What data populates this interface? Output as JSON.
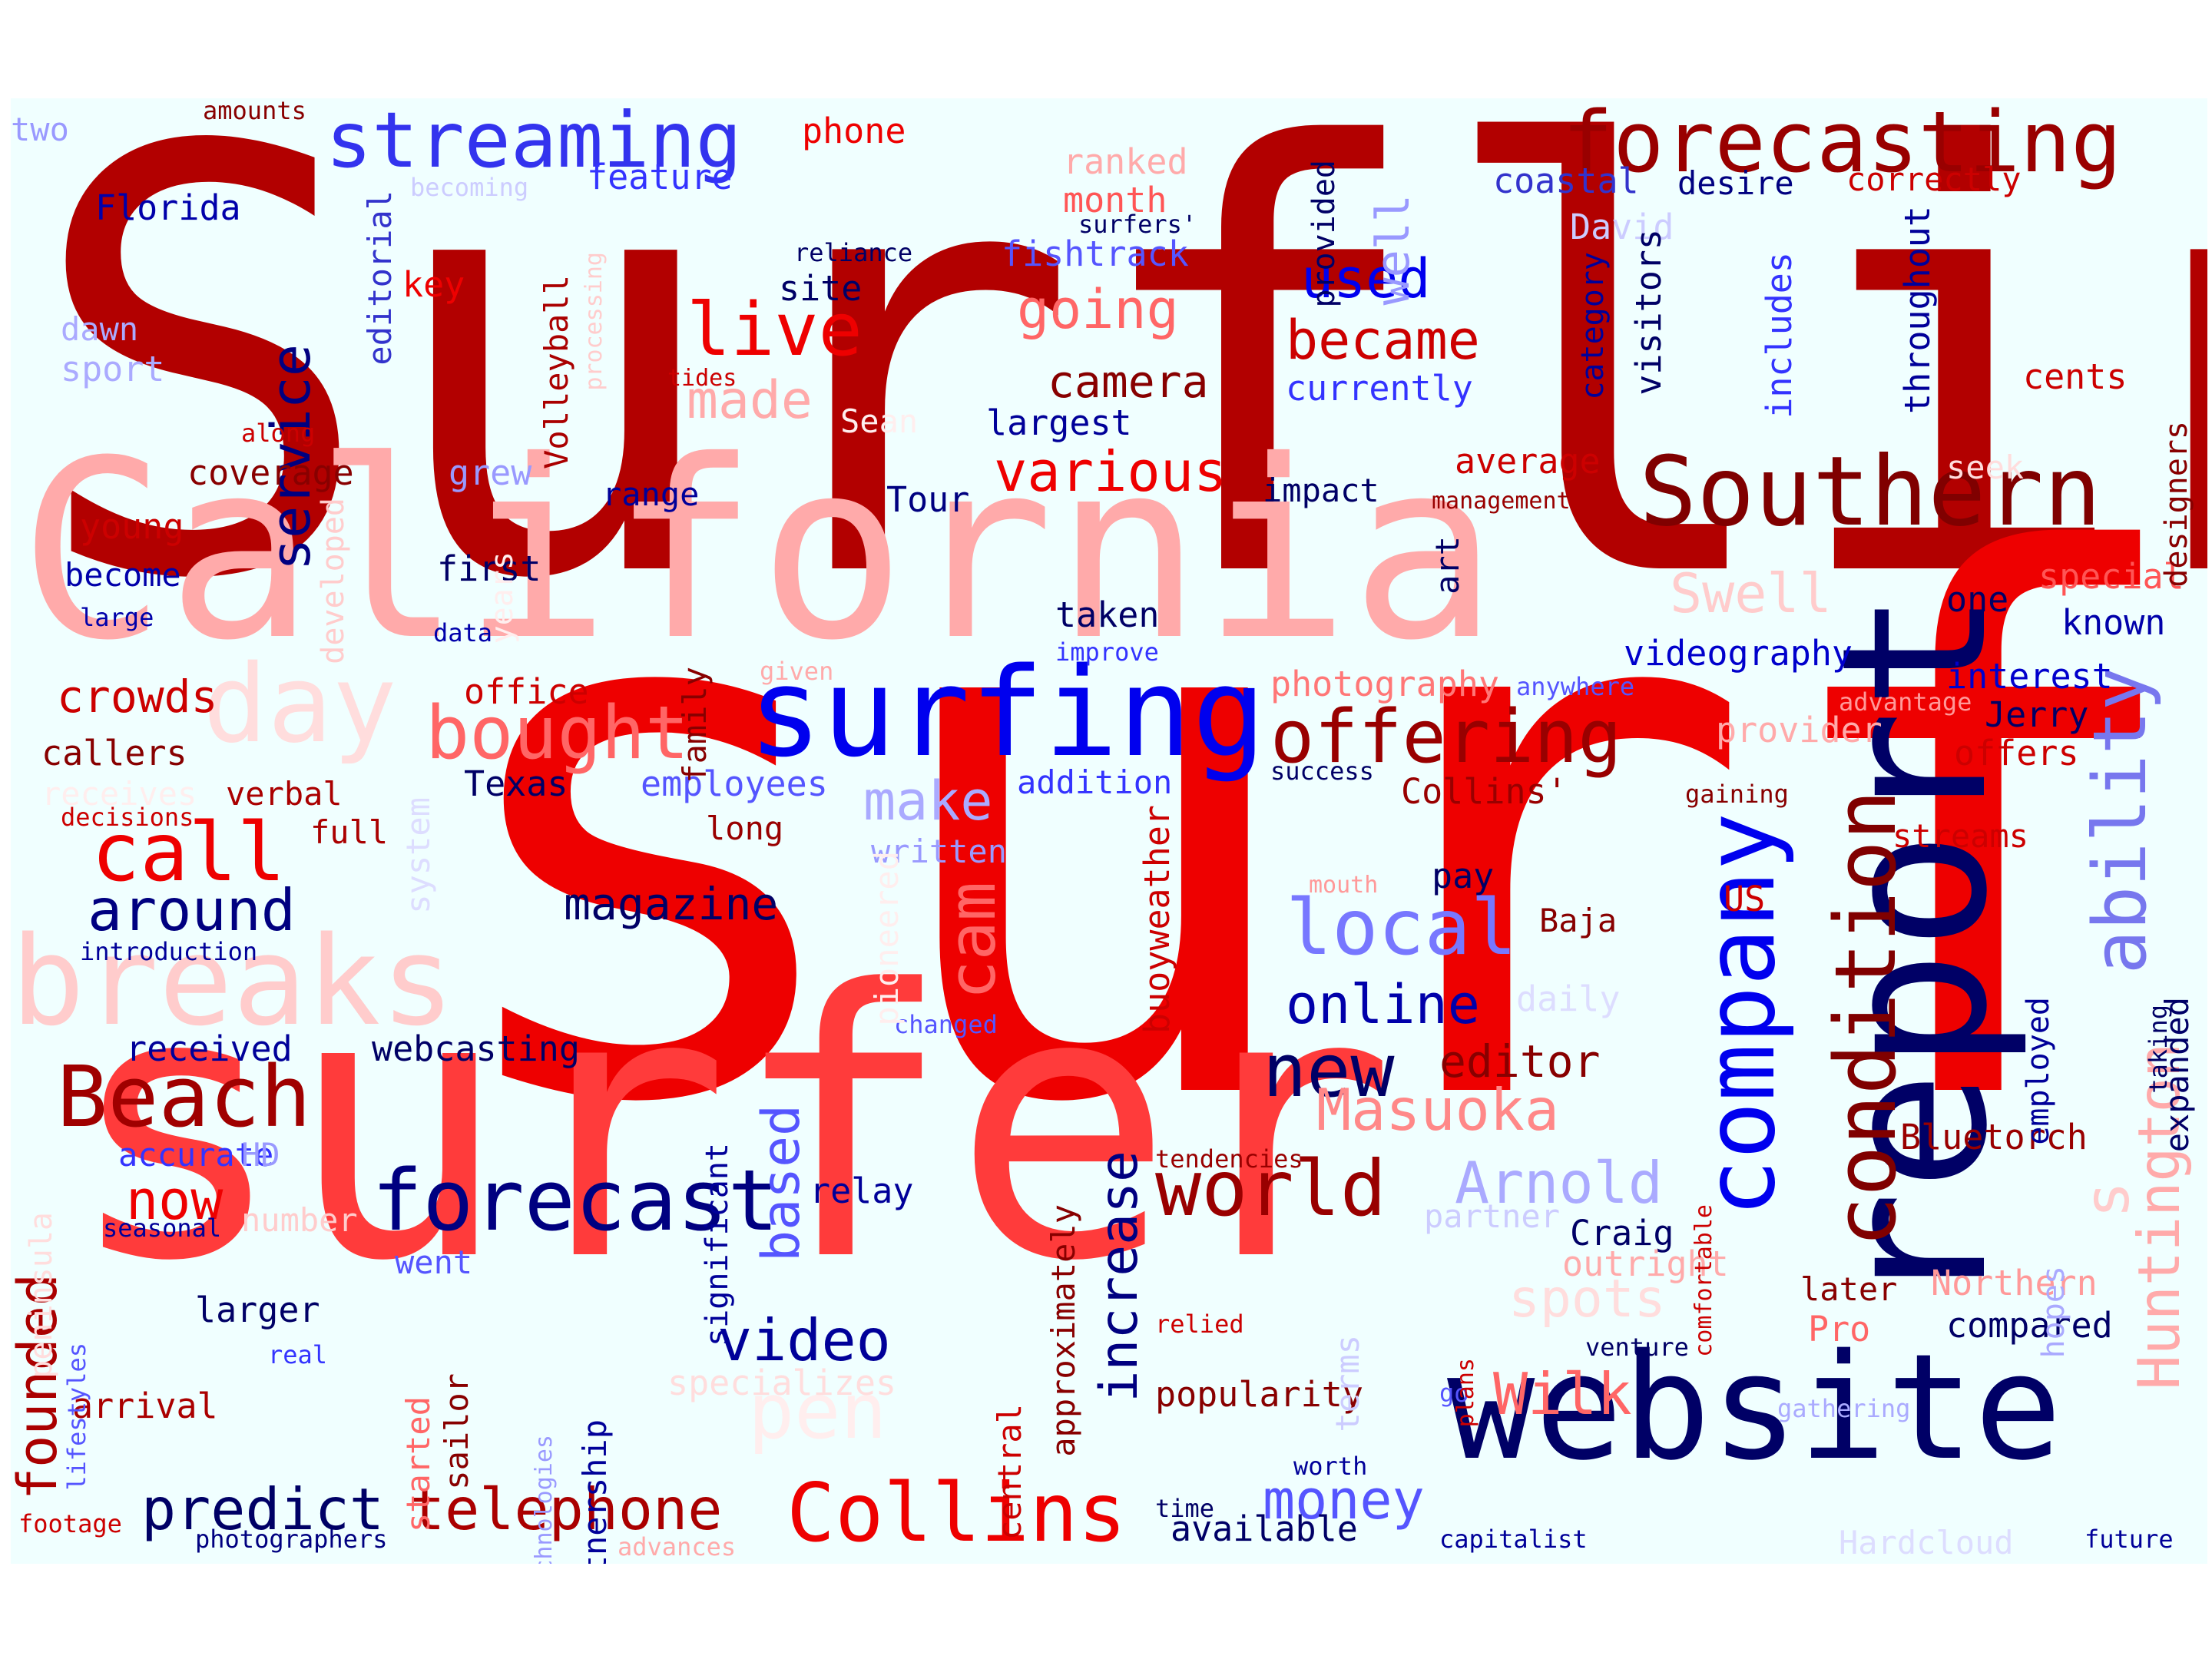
{
  "title": "",
  "palette": {
    "dark_navy": "#000066",
    "blue": "#0000ff",
    "light_blue": "#9999ff",
    "dark_red": "#aa0000",
    "red": "#ff0000",
    "pink": "#ff9999",
    "background": "#f0ffff"
  },
  "words": [
    {
      "text": "Surfline",
      "size": 760,
      "color": "#b20000"
    },
    {
      "text": "surf",
      "size": 960,
      "color": "#ee0000"
    },
    {
      "text": "surfer",
      "size": 480,
      "color": "#ff3b3b"
    },
    {
      "text": "California",
      "size": 320,
      "color": "#ffaaaa"
    },
    {
      "text": "report",
      "size": 260,
      "color": "#000066",
      "vertical": true
    },
    {
      "text": "website",
      "size": 190,
      "color": "#000066"
    },
    {
      "text": "surfing",
      "size": 160,
      "color": "#0000ee"
    },
    {
      "text": "company",
      "size": 125,
      "color": "#0000ee",
      "vertical": true
    },
    {
      "text": "breaks",
      "size": 160,
      "color": "#ffcccc"
    },
    {
      "text": "Southern",
      "size": 125,
      "color": "#800000"
    },
    {
      "text": "forecast",
      "size": 110,
      "color": "#000080"
    },
    {
      "text": "Beach",
      "size": 110,
      "color": "#a00000"
    },
    {
      "text": "Collins",
      "size": 105,
      "color": "#ee0000"
    },
    {
      "text": "forecasting",
      "size": 110,
      "color": "#990000"
    },
    {
      "text": "streaming",
      "size": 100,
      "color": "#3333ee"
    },
    {
      "text": "condition",
      "size": 110,
      "color": "#800000",
      "vertical": true
    },
    {
      "text": "day",
      "size": 140,
      "color": "#ffdddd"
    },
    {
      "text": "world",
      "size": 100,
      "color": "#990000"
    },
    {
      "text": "offering",
      "size": 95,
      "color": "#990000"
    },
    {
      "text": "bought",
      "size": 95,
      "color": "#ff6666"
    },
    {
      "text": "call",
      "size": 105,
      "color": "#ee0000"
    },
    {
      "text": "local",
      "size": 100,
      "color": "#7777ff"
    },
    {
      "text": "ability",
      "size": 95,
      "color": "#7777ee",
      "vertical": true
    },
    {
      "text": "new",
      "size": 95,
      "color": "#000066"
    },
    {
      "text": "live",
      "size": 95,
      "color": "#ee0000"
    },
    {
      "text": "telephone",
      "size": 75,
      "color": "#aa0000"
    },
    {
      "text": "predict",
      "size": 75,
      "color": "#000066"
    },
    {
      "text": "Huntington",
      "size": 75,
      "color": "#ffaaaa",
      "vertical": true
    },
    {
      "text": "cam",
      "size": 85,
      "color": "#ff6666",
      "vertical": true
    },
    {
      "text": "around",
      "size": 75,
      "color": "#000080"
    },
    {
      "text": "Arnold",
      "size": 75,
      "color": "#aaaaff"
    },
    {
      "text": "Masuoka",
      "size": 75,
      "color": "#ff8888"
    },
    {
      "text": "video",
      "size": 75,
      "color": "#000099"
    },
    {
      "text": "money",
      "size": 70,
      "color": "#5555ff"
    },
    {
      "text": "founded",
      "size": 70,
      "color": "#aa0000",
      "vertical": true
    },
    {
      "text": "Wilk",
      "size": 75,
      "color": "#ff6666"
    },
    {
      "text": "various",
      "size": 72,
      "color": "#ee0000"
    },
    {
      "text": "became",
      "size": 70,
      "color": "#cc0000"
    },
    {
      "text": "online",
      "size": 70,
      "color": "#0000aa"
    },
    {
      "text": "going",
      "size": 70,
      "color": "#ff6666"
    },
    {
      "text": "service",
      "size": 70,
      "color": "#000080",
      "vertical": true
    },
    {
      "text": "used",
      "size": 70,
      "color": "#0000ee"
    },
    {
      "text": "increase",
      "size": 68,
      "color": "#000080",
      "vertical": true
    },
    {
      "text": "based",
      "size": 68,
      "color": "#5555ff",
      "vertical": true
    },
    {
      "text": "now",
      "size": 70,
      "color": "#ee0000"
    },
    {
      "text": "make",
      "size": 70,
      "color": "#aaaaff"
    },
    {
      "text": "made",
      "size": 68,
      "color": "#ffaaaa"
    },
    {
      "text": "Swell",
      "size": 70,
      "color": "#ffcccc"
    },
    {
      "text": "spots",
      "size": 68,
      "color": "#ffdddd"
    },
    {
      "text": "editor",
      "size": 58,
      "color": "#880000"
    },
    {
      "text": "camera",
      "size": 58,
      "color": "#880000"
    },
    {
      "text": "magazine",
      "size": 58,
      "color": "#000066"
    },
    {
      "text": "crowds",
      "size": 58,
      "color": "#cc0000"
    },
    {
      "text": "well",
      "size": 60,
      "color": "#9999ff",
      "vertical": true
    },
    {
      "text": "pen",
      "size": 100,
      "color": "#ffeeee"
    },
    {
      "text": "popularity",
      "size": 45,
      "color": "#880000"
    },
    {
      "text": "available",
      "size": 45,
      "color": "#000066"
    },
    {
      "text": "webcasting",
      "size": 45,
      "color": "#000066"
    },
    {
      "text": "received",
      "size": 45,
      "color": "#000099"
    },
    {
      "text": "coverage",
      "size": 45,
      "color": "#880000"
    },
    {
      "text": "first",
      "size": 45,
      "color": "#000066"
    },
    {
      "text": "young",
      "size": 45,
      "color": "#cc0000"
    },
    {
      "text": "become",
      "size": 42,
      "color": "#0000aa"
    },
    {
      "text": "callers",
      "size": 45,
      "color": "#880000"
    },
    {
      "text": "office",
      "size": 45,
      "color": "#cc0000"
    },
    {
      "text": "Texas",
      "size": 45,
      "color": "#000066"
    },
    {
      "text": "employees",
      "size": 45,
      "color": "#5555ff"
    },
    {
      "text": "long",
      "size": 42,
      "color": "#990000"
    },
    {
      "text": "written",
      "size": 42,
      "color": "#9999ff"
    },
    {
      "text": "addition",
      "size": 42,
      "color": "#3333ff"
    },
    {
      "text": "Collins'",
      "size": 45,
      "color": "#990000"
    },
    {
      "text": "photography",
      "size": 45,
      "color": "#ff7777"
    },
    {
      "text": "videography",
      "size": 45,
      "color": "#0000cc"
    },
    {
      "text": "Jerry",
      "size": 45,
      "color": "#000066"
    },
    {
      "text": "offers",
      "size": 45,
      "color": "#cc0000"
    },
    {
      "text": "provider",
      "size": 45,
      "color": "#ffaaaa"
    },
    {
      "text": "interest",
      "size": 45,
      "color": "#0000cc"
    },
    {
      "text": "known",
      "size": 45,
      "color": "#0000aa"
    },
    {
      "text": "special",
      "size": 45,
      "color": "#ff5555"
    },
    {
      "text": "one",
      "size": 45,
      "color": "#000066"
    },
    {
      "text": "taken",
      "size": 45,
      "color": "#000066"
    },
    {
      "text": "average",
      "size": 45,
      "color": "#cc0000"
    },
    {
      "text": "impact",
      "size": 42,
      "color": "#000066"
    },
    {
      "text": "Tour",
      "size": 45,
      "color": "#000080"
    },
    {
      "text": "range",
      "size": 42,
      "color": "#000099"
    },
    {
      "text": "grew",
      "size": 45,
      "color": "#9999ff"
    },
    {
      "text": "largest",
      "size": 45,
      "color": "#000099"
    },
    {
      "text": "currently",
      "size": 45,
      "color": "#3333ff"
    },
    {
      "text": "fishtrack",
      "size": 45,
      "color": "#5555ff"
    },
    {
      "text": "site",
      "size": 45,
      "color": "#000066"
    },
    {
      "text": "feature",
      "size": 45,
      "color": "#3333ff"
    },
    {
      "text": "coastal",
      "size": 45,
      "color": "#3333cc"
    },
    {
      "text": "desire",
      "size": 42,
      "color": "#000080"
    },
    {
      "text": "correctly",
      "size": 42,
      "color": "#cc0000"
    },
    {
      "text": "ranked",
      "size": 45,
      "color": "#ffaaaa"
    },
    {
      "text": "month",
      "size": 45,
      "color": "#ff5555"
    },
    {
      "text": "phone",
      "size": 45,
      "color": "#ee0000"
    },
    {
      "text": "two",
      "size": 42,
      "color": "#9999ff"
    },
    {
      "text": "amounts",
      "size": 32,
      "color": "#880000"
    },
    {
      "text": "Florida",
      "size": 45,
      "color": "#0000aa"
    },
    {
      "text": "key",
      "size": 45,
      "color": "#ee0000"
    },
    {
      "text": "dawn",
      "size": 42,
      "color": "#aaaaff"
    },
    {
      "text": "sport",
      "size": 45,
      "color": "#aaaaff"
    },
    {
      "text": "along",
      "size": 32,
      "color": "#cc0000"
    },
    {
      "text": "tides",
      "size": 30,
      "color": "#cc0000"
    },
    {
      "text": "reliance",
      "size": 32,
      "color": "#000066"
    },
    {
      "text": "surfers'",
      "size": 32,
      "color": "#000066"
    },
    {
      "text": "David",
      "size": 45,
      "color": "#ccccff"
    },
    {
      "text": "cents",
      "size": 45,
      "color": "#cc0000"
    },
    {
      "text": "seek",
      "size": 42,
      "color": "#ffdddd"
    },
    {
      "text": "management",
      "size": 30,
      "color": "#990000"
    },
    {
      "text": "data",
      "size": 32,
      "color": "#0000aa"
    },
    {
      "text": "large",
      "size": 32,
      "color": "#0000aa"
    },
    {
      "text": "given",
      "size": 32,
      "color": "#ffaaaa"
    },
    {
      "text": "improve",
      "size": 32,
      "color": "#3333ff"
    },
    {
      "text": "anywhere",
      "size": 32,
      "color": "#5555ff"
    },
    {
      "text": "advantage",
      "size": 32,
      "color": "#ff9999"
    },
    {
      "text": "success",
      "size": 32,
      "color": "#000066"
    },
    {
      "text": "gaining",
      "size": 32,
      "color": "#880000"
    },
    {
      "text": "streams",
      "size": 42,
      "color": "#cc0000"
    },
    {
      "text": "decisions",
      "size": 32,
      "color": "#cc0000"
    },
    {
      "text": "verbal",
      "size": 42,
      "color": "#aa0000"
    },
    {
      "text": "receives",
      "size": 42,
      "color": "#ffeeee"
    },
    {
      "text": "full",
      "size": 42,
      "color": "#aa0000"
    },
    {
      "text": "introduction",
      "size": 32,
      "color": "#000099"
    },
    {
      "text": "mouth",
      "size": 30,
      "color": "#ff9999"
    },
    {
      "text": "pay",
      "size": 45,
      "color": "#000066"
    },
    {
      "text": "US",
      "size": 45,
      "color": "#cc0000"
    },
    {
      "text": "Baja",
      "size": 42,
      "color": "#880000"
    },
    {
      "text": "daily",
      "size": 45,
      "color": "#ddddff"
    },
    {
      "text": "changed",
      "size": 32,
      "color": "#5555ff"
    },
    {
      "text": "accurate",
      "size": 42,
      "color": "#3333ff"
    },
    {
      "text": "HD",
      "size": 42,
      "color": "#9999ff"
    },
    {
      "text": "seasonal",
      "size": 32,
      "color": "#000099"
    },
    {
      "text": "number",
      "size": 42,
      "color": "#ffcccc"
    },
    {
      "text": "relay",
      "size": 45,
      "color": "#000099"
    },
    {
      "text": "tendencies",
      "size": 32,
      "color": "#990000"
    },
    {
      "text": "partner",
      "size": 42,
      "color": "#ccccff"
    },
    {
      "text": "Craig",
      "size": 45,
      "color": "#000066"
    },
    {
      "text": "went",
      "size": 42,
      "color": "#5555ff"
    },
    {
      "text": "outright",
      "size": 45,
      "color": "#ffaaaa"
    },
    {
      "text": "Bluetorch",
      "size": 45,
      "color": "#990000"
    },
    {
      "text": "Northern",
      "size": 45,
      "color": "#ff9999"
    },
    {
      "text": "later",
      "size": 42,
      "color": "#880000"
    },
    {
      "text": "Pro",
      "size": 45,
      "color": "#ff6666"
    },
    {
      "text": "compared",
      "size": 45,
      "color": "#000066"
    },
    {
      "text": "larger",
      "size": 45,
      "color": "#000066"
    },
    {
      "text": "real",
      "size": 32,
      "color": "#3333ff"
    },
    {
      "text": "venture",
      "size": 32,
      "color": "#000066"
    },
    {
      "text": "specializes",
      "size": 45,
      "color": "#ffdddd"
    },
    {
      "text": "relied",
      "size": 32,
      "color": "#cc0000"
    },
    {
      "text": "arrival",
      "size": 45,
      "color": "#aa0000"
    },
    {
      "text": "go",
      "size": 32,
      "color": "#5555ff"
    },
    {
      "text": "gathering",
      "size": 32,
      "color": "#aaaaff"
    },
    {
      "text": "worth",
      "size": 32,
      "color": "#000099"
    },
    {
      "text": "time",
      "size": 32,
      "color": "#000066"
    },
    {
      "text": "footage",
      "size": 32,
      "color": "#cc0000"
    },
    {
      "text": "photographers",
      "size": 32,
      "color": "#000080"
    },
    {
      "text": "advances",
      "size": 32,
      "color": "#ffaaaa"
    },
    {
      "text": "capitalist",
      "size": 32,
      "color": "#000099"
    },
    {
      "text": "Hardcloud",
      "size": 42,
      "color": "#ddddff"
    },
    {
      "text": "future",
      "size": 32,
      "color": "#000099"
    },
    {
      "text": "becoming",
      "size": 32,
      "color": "#ccccff"
    },
    {
      "text": "Sean",
      "size": 42,
      "color": "#ffeeee"
    },
    {
      "text": "Volleyball",
      "size": 42,
      "color": "#aa0000",
      "vertical": true
    },
    {
      "text": "editorial",
      "size": 42,
      "color": "#3333cc",
      "vertical": true
    },
    {
      "text": "processing",
      "size": 30,
      "color": "#ffcccc",
      "vertical": true
    },
    {
      "text": "provided",
      "size": 40,
      "color": "#000066",
      "vertical": true
    },
    {
      "text": "category",
      "size": 40,
      "color": "#000099",
      "vertical": true
    },
    {
      "text": "visitors",
      "size": 45,
      "color": "#000066",
      "vertical": true
    },
    {
      "text": "includes",
      "size": 45,
      "color": "#3333ff",
      "vertical": true
    },
    {
      "text": "throughout",
      "size": 45,
      "color": "#000099",
      "vertical": true
    },
    {
      "text": "designers",
      "size": 40,
      "color": "#880000",
      "vertical": true
    },
    {
      "text": "developed",
      "size": 40,
      "color": "#ffcccc",
      "vertical": true
    },
    {
      "text": "years",
      "size": 40,
      "color": "#ffeeee",
      "vertical": true
    },
    {
      "text": "family",
      "size": 42,
      "color": "#880000",
      "vertical": true
    },
    {
      "text": "art",
      "size": 42,
      "color": "#000066",
      "vertical": true
    },
    {
      "text": "system",
      "size": 42,
      "color": "#ddddff",
      "vertical": true
    },
    {
      "text": "pioneered",
      "size": 42,
      "color": "#ffeeee",
      "vertical": true
    },
    {
      "text": "significant",
      "size": 40,
      "color": "#000099",
      "vertical": true
    },
    {
      "text": "buoyweather",
      "size": 45,
      "color": "#cc0000",
      "vertical": true
    },
    {
      "text": "approximately",
      "size": 42,
      "color": "#880000",
      "vertical": true
    },
    {
      "text": "central",
      "size": 42,
      "color": "#cc0000",
      "vertical": true
    },
    {
      "text": "partnership",
      "size": 42,
      "color": "#000099",
      "vertical": true
    },
    {
      "text": "technologies",
      "size": 30,
      "color": "#9999ff",
      "vertical": true
    },
    {
      "text": "started",
      "size": 42,
      "color": "#ff6666",
      "vertical": true
    },
    {
      "text": "sailor",
      "size": 42,
      "color": "#880000",
      "vertical": true
    },
    {
      "text": "terms",
      "size": 42,
      "color": "#ccccff",
      "vertical": true
    },
    {
      "text": "plans",
      "size": 30,
      "color": "#cc0000",
      "vertical": true
    },
    {
      "text": "comfortable",
      "size": 30,
      "color": "#cc0000",
      "vertical": true
    },
    {
      "text": "comformable",
      "size": 0,
      "color": "#ffffff",
      "hidden": true
    },
    {
      "text": "employed",
      "size": 40,
      "color": "#000099",
      "vertical": true
    },
    {
      "text": "taking",
      "size": 32,
      "color": "#000066",
      "vertical": true
    },
    {
      "text": "expanded",
      "size": 42,
      "color": "#000066",
      "vertical": true
    },
    {
      "text": "hopes",
      "size": 40,
      "color": "#aaaaff",
      "vertical": true
    },
    {
      "text": "s",
      "size": 80,
      "color": "#ffcccc",
      "vertical": true
    },
    {
      "text": "peninsula",
      "size": 40,
      "color": "#ffdddd",
      "vertical": true
    },
    {
      "text": "lifestyles",
      "size": 32,
      "color": "#5555ff",
      "vertical": true
    }
  ]
}
